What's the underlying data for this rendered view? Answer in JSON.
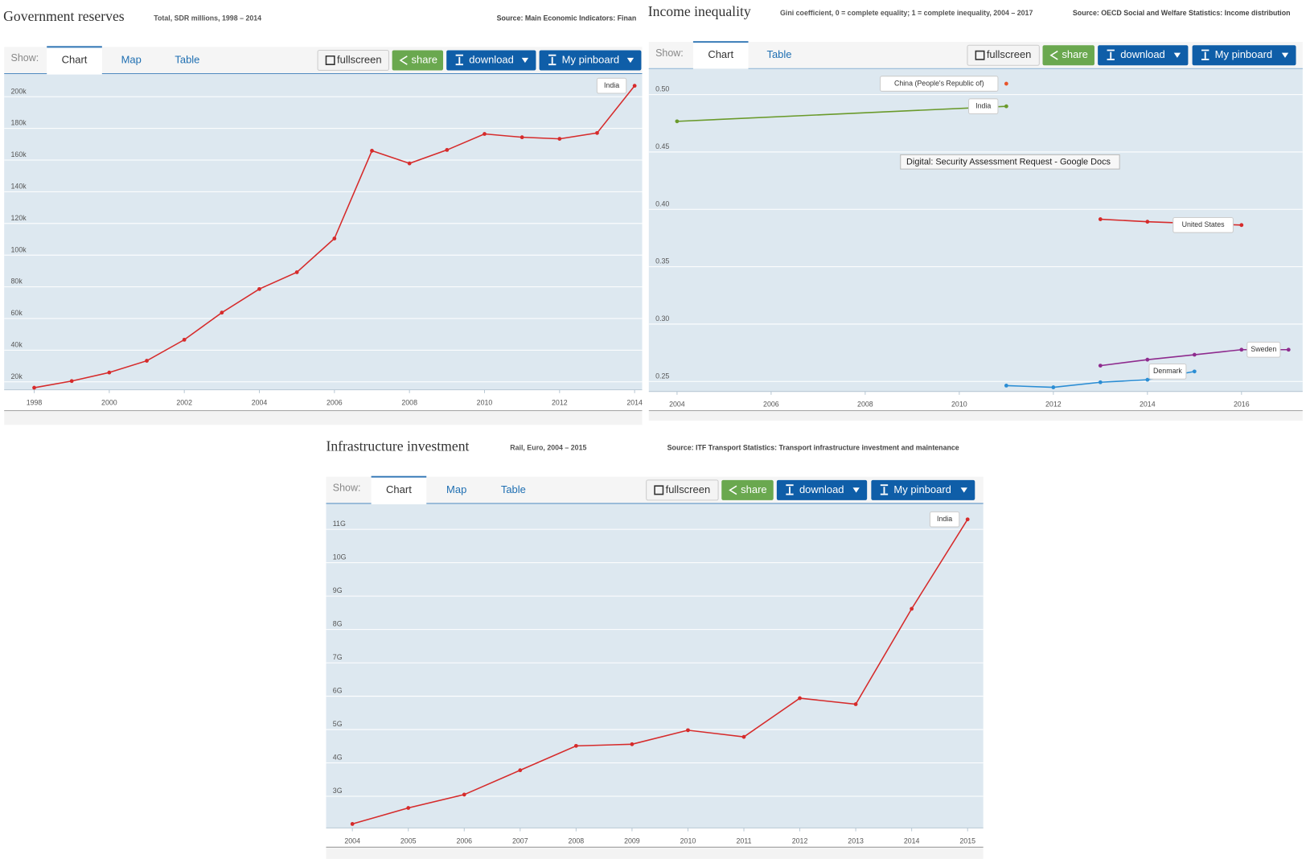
{
  "chart_data": [
    {
      "type": "line",
      "title": "Government reserves",
      "subtitle": "Total, SDR millions, 1998 – 2014",
      "source": "Source: Main Economic Indicators: Finan",
      "show_label": "Show:",
      "tabs": [
        "Chart",
        "Map",
        "Table"
      ],
      "buttons": [
        "fullscreen",
        "share",
        "download",
        "My pinboard"
      ],
      "xlim": [
        1997.2,
        2014.2
      ],
      "xticks": [
        1998,
        2000,
        2002,
        2004,
        2006,
        2008,
        2010,
        2012,
        2014
      ],
      "ylim": [
        15000,
        214000
      ],
      "yticks": [
        {
          "value": 20000,
          "label": "20k"
        },
        {
          "value": 40000,
          "label": "40k"
        },
        {
          "value": 60000,
          "label": "60k"
        },
        {
          "value": 80000,
          "label": "80k"
        },
        {
          "value": 100000,
          "label": "100k"
        },
        {
          "value": 120000,
          "label": "120k"
        },
        {
          "value": 140000,
          "label": "140k"
        },
        {
          "value": 160000,
          "label": "160k"
        },
        {
          "value": 180000,
          "label": "180k"
        },
        {
          "value": 200000,
          "label": "200k"
        }
      ],
      "grid": true,
      "series": [
        {
          "name": "India",
          "color": "#d62b2b",
          "x": [
            1998,
            1999,
            2000,
            2001,
            2002,
            2003,
            2004,
            2005,
            2006,
            2007,
            2008,
            2009,
            2010,
            2011,
            2012,
            2013,
            2014
          ],
          "values": [
            16300,
            20500,
            25900,
            33300,
            46600,
            63700,
            78600,
            89200,
            110500,
            165900,
            157900,
            166400,
            176500,
            174400,
            173400,
            177100,
            206900
          ]
        }
      ]
    },
    {
      "type": "line",
      "title": "Income inequality",
      "subtitle": "Gini coefficient, 0 = complete equality; 1 = complete inequality, 2004 – 2017",
      "source": "Source: OECD Social and Welfare Statistics: Income distribution",
      "show_label": "Show:",
      "tabs": [
        "Chart",
        "Table"
      ],
      "buttons": [
        "fullscreen",
        "share",
        "download",
        "My pinboard"
      ],
      "xlim": [
        2003.4,
        2017.3
      ],
      "xticks": [
        2004,
        2006,
        2008,
        2010,
        2012,
        2014,
        2016
      ],
      "ylim": [
        0.2413,
        0.5226
      ],
      "yticks": [
        0.25,
        {
          "value": 0.3,
          "label": "0.30"
        },
        0.35,
        {
          "value": 0.4,
          "label": "0.40"
        },
        0.45,
        {
          "value": 0.5,
          "label": "0.50"
        }
      ],
      "grid": true,
      "series": [
        {
          "name": "China (People's Republic of)",
          "color": "#e8542a",
          "x": [
            2011
          ],
          "values": [
            0.5095
          ]
        },
        {
          "name": "India",
          "color": "#6a9a2b",
          "x": [
            2004,
            2011
          ],
          "values": [
            0.4767,
            0.4898
          ]
        },
        {
          "name": "United States",
          "color": "#d62b2b",
          "x": [
            2013,
            2014,
            2016
          ],
          "values": [
            0.3914,
            0.3892,
            0.3863
          ]
        },
        {
          "name": "Sweden",
          "color": "#8e2b8e",
          "x": [
            2013,
            2014,
            2015,
            2016,
            2017
          ],
          "values": [
            0.2638,
            0.269,
            0.2733,
            0.2777,
            0.2777
          ]
        },
        {
          "name": "Denmark",
          "color": "#2a8dd4",
          "x": [
            2011,
            2012,
            2013,
            2014,
            2015
          ],
          "values": [
            0.2464,
            0.2449,
            0.2493,
            0.2515,
            0.2587
          ]
        }
      ]
    },
    {
      "type": "line",
      "title": "Infrastructure investment",
      "subtitle": "Rail, Euro, 2004 – 2015",
      "source": "Source: ITF Transport Statistics: Transport infrastructure investment and maintenance",
      "show_label": "Show:",
      "tabs": [
        "Chart",
        "Map",
        "Table"
      ],
      "buttons": [
        "fullscreen",
        "share",
        "download",
        "My pinboard"
      ],
      "xlim": [
        2003.53,
        2015.28
      ],
      "xticks": [
        2004,
        2005,
        2006,
        2007,
        2008,
        2009,
        2010,
        2011,
        2012,
        2013,
        2014,
        2015
      ],
      "ylim": [
        2050000000,
        11750000000
      ],
      "yticks": [
        {
          "value": 3000000000,
          "label": "3G"
        },
        {
          "value": 4000000000,
          "label": "4G"
        },
        {
          "value": 5000000000,
          "label": "5G"
        },
        {
          "value": 6000000000,
          "label": "6G"
        },
        {
          "value": 7000000000,
          "label": "7G"
        },
        {
          "value": 8000000000,
          "label": "8G"
        },
        {
          "value": 9000000000,
          "label": "9G"
        },
        {
          "value": 10000000000,
          "label": "10G"
        },
        {
          "value": 11000000000,
          "label": "11G"
        }
      ],
      "grid": true,
      "series": [
        {
          "name": "India",
          "color": "#d62b2b",
          "x": [
            2004,
            2005,
            2006,
            2007,
            2008,
            2009,
            2010,
            2011,
            2012,
            2013,
            2014,
            2015
          ],
          "values": [
            2170000000,
            2650000000,
            3050000000,
            3780000000,
            4510000000,
            4560000000,
            4980000000,
            4780000000,
            5940000000,
            5760000000,
            8620000000,
            11300000000
          ]
        }
      ]
    }
  ],
  "tooltip": "Digital: Security Assessment Request - Google Docs"
}
